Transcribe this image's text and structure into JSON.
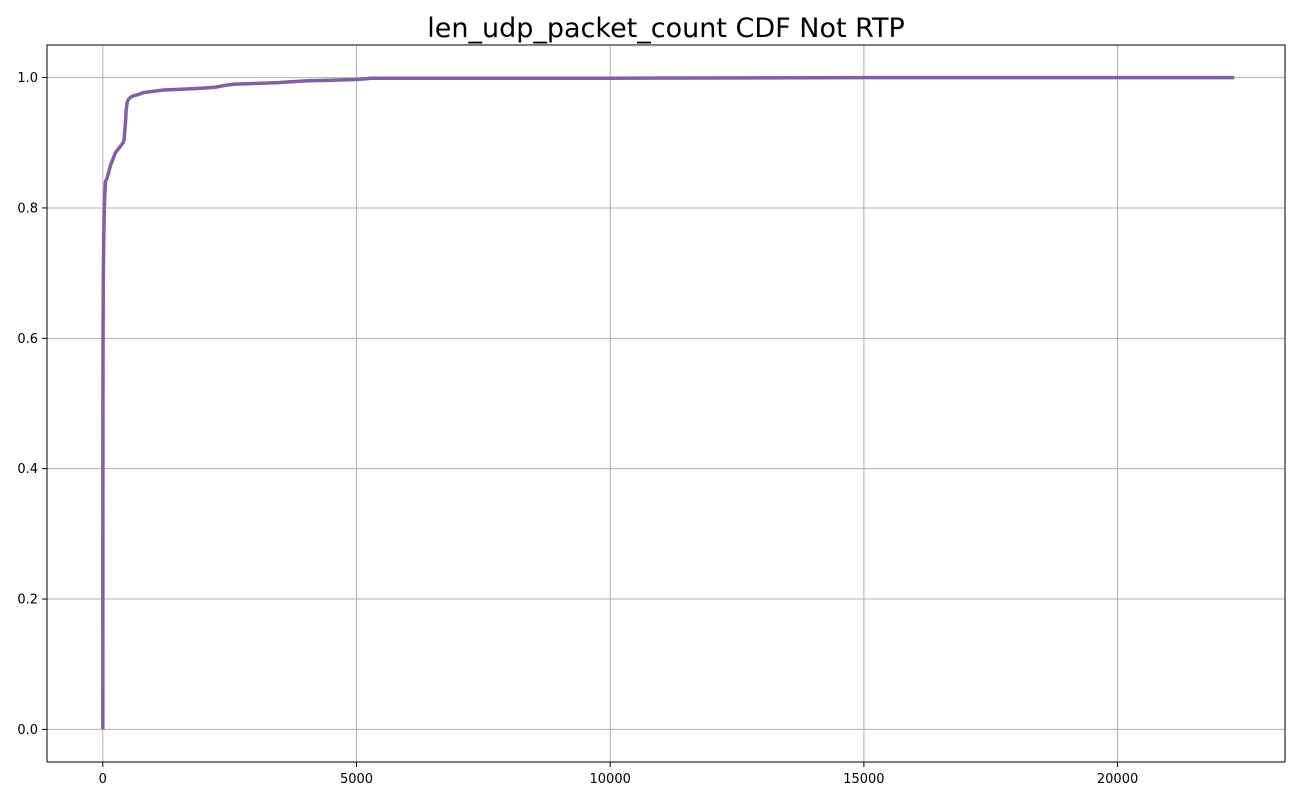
{
  "chart_data": {
    "type": "line",
    "title": "len_udp_packet_count CDF Not RTP",
    "xlabel": "",
    "ylabel": "",
    "xlim": [
      -1100,
      23300
    ],
    "ylim": [
      -0.05,
      1.05
    ],
    "xticks": [
      0,
      5000,
      10000,
      15000,
      20000
    ],
    "xtick_labels": [
      "0",
      "5000",
      "10000",
      "15000",
      "20000"
    ],
    "yticks": [
      0.0,
      0.2,
      0.4,
      0.6,
      0.8,
      1.0
    ],
    "ytick_labels": [
      "0.0",
      "0.2",
      "0.4",
      "0.6",
      "0.8",
      "1.0"
    ],
    "grid": true,
    "legend": "none",
    "line_color": "#7f5fa6",
    "series": [
      {
        "x": [
          0,
          1,
          3,
          5,
          10,
          20,
          30,
          50,
          80,
          100,
          150,
          200,
          250,
          300,
          350,
          400,
          420,
          440,
          450,
          460,
          480,
          500,
          550,
          600,
          700,
          800,
          900,
          1000,
          1200,
          1500,
          1800,
          2000,
          2200,
          2400,
          2600,
          3000,
          3400,
          3600,
          4000,
          4500,
          5000,
          5300,
          6000,
          8000,
          10000,
          15000,
          20000,
          22300
        ],
        "y": [
          0.0,
          0.2,
          0.5,
          0.6,
          0.7,
          0.76,
          0.8,
          0.84,
          0.845,
          0.85,
          0.865,
          0.875,
          0.885,
          0.89,
          0.895,
          0.9,
          0.905,
          0.925,
          0.935,
          0.95,
          0.962,
          0.966,
          0.97,
          0.972,
          0.974,
          0.977,
          0.978,
          0.979,
          0.981,
          0.982,
          0.983,
          0.984,
          0.985,
          0.988,
          0.99,
          0.991,
          0.992,
          0.993,
          0.995,
          0.996,
          0.997,
          0.999,
          0.999,
          0.999,
          0.999,
          1.0,
          1.0,
          1.0
        ]
      }
    ]
  }
}
